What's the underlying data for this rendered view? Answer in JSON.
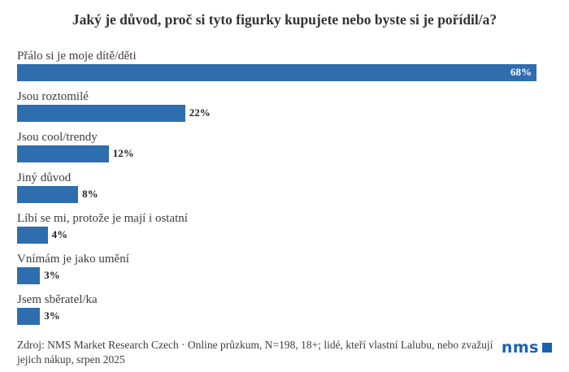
{
  "page": {
    "background": "#ffffff"
  },
  "chart_data": {
    "type": "bar",
    "orientation": "horizontal",
    "title": "Jaký je důvod, proč si tyto figurky kupujete nebo byste si je pořídil/a?",
    "categories": [
      "Přálo si je moje dítě/děti",
      "Jsou roztomilé",
      "Jsou cool/trendy",
      "Jiný důvod",
      "Líbí se mi, protože je mají i ostatní",
      "Vnímám je jako umění",
      "Jsem sběratel/ka"
    ],
    "values": [
      68,
      22,
      12,
      8,
      4,
      3,
      3
    ],
    "value_labels": [
      "68%",
      "22%",
      "12%",
      "8%",
      "4%",
      "3%",
      "3%"
    ],
    "xlim": [
      0,
      68
    ],
    "bar_color": "#2f6eae",
    "grid": false,
    "legend": "none",
    "value_label_inside_color": "#ffffff",
    "value_label_outside_color": "#222222"
  },
  "footer": {
    "source_text": "Zdroj: NMS Market Research Czech · Online průzkum, N=198, 18+; lidé, kteří vlastní Lalubu, nebo zvažují jejich nákup, srpen 2025",
    "logo_text": "nms",
    "logo_color": "#1a61b0"
  }
}
